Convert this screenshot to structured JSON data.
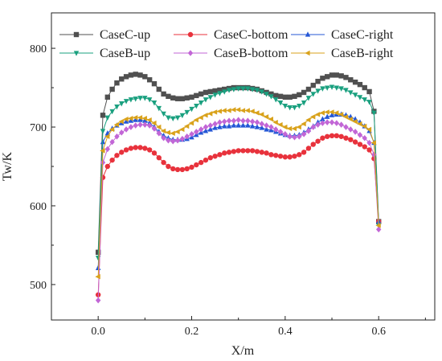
{
  "chart_data": {
    "type": "line",
    "xlabel": "X/m",
    "ylabel": "Tw/K",
    "xlim": [
      -0.1,
      0.72
    ],
    "ylim": [
      455,
      845
    ],
    "xticks": [
      0.0,
      0.2,
      0.4,
      0.6
    ],
    "xtick_labels": [
      "0.0",
      "0.2",
      "0.4",
      "0.6"
    ],
    "yticks": [
      500,
      600,
      700,
      800
    ],
    "ytick_labels": [
      "500",
      "600",
      "700",
      "800"
    ],
    "grid": false,
    "legend_placement": "top",
    "x": [
      0.0,
      0.01,
      0.02,
      0.03,
      0.04,
      0.05,
      0.06,
      0.07,
      0.08,
      0.09,
      0.1,
      0.11,
      0.12,
      0.13,
      0.14,
      0.15,
      0.16,
      0.17,
      0.18,
      0.19,
      0.2,
      0.21,
      0.22,
      0.23,
      0.24,
      0.25,
      0.26,
      0.27,
      0.28,
      0.29,
      0.3,
      0.31,
      0.32,
      0.33,
      0.34,
      0.35,
      0.36,
      0.37,
      0.38,
      0.39,
      0.4,
      0.41,
      0.42,
      0.43,
      0.44,
      0.45,
      0.46,
      0.47,
      0.48,
      0.49,
      0.5,
      0.51,
      0.52,
      0.53,
      0.54,
      0.55,
      0.56,
      0.57,
      0.58,
      0.59,
      0.6
    ],
    "series": [
      {
        "name": "CaseC-up",
        "color": "#505050",
        "marker": "square",
        "values": [
          541,
          715,
          738,
          748,
          756,
          761,
          764,
          766,
          767,
          766,
          764,
          760,
          755,
          748,
          742,
          739,
          737,
          736,
          736,
          737,
          738,
          740,
          742,
          744,
          745,
          746,
          747,
          748,
          749,
          750,
          750,
          750,
          750,
          749,
          748,
          746,
          744,
          742,
          740,
          739,
          738,
          738,
          739,
          741,
          744,
          748,
          753,
          758,
          762,
          764,
          766,
          766,
          765,
          763,
          760,
          757,
          754,
          750,
          745,
          720,
          580
        ]
      },
      {
        "name": "CaseC-bottom",
        "color": "#e8323c",
        "marker": "circle",
        "values": [
          487,
          636,
          650,
          658,
          664,
          668,
          671,
          673,
          674,
          674,
          673,
          671,
          667,
          661,
          655,
          650,
          647,
          646,
          646,
          647,
          649,
          652,
          655,
          658,
          661,
          663,
          665,
          667,
          668,
          669,
          670,
          670,
          670,
          670,
          669,
          668,
          667,
          665,
          664,
          663,
          662,
          662,
          663,
          665,
          668,
          673,
          678,
          682,
          686,
          688,
          689,
          689,
          688,
          686,
          684,
          681,
          678,
          675,
          671,
          660,
          580
        ]
      },
      {
        "name": "CaseC-right",
        "color": "#2457d6",
        "marker": "triangle-up",
        "values": [
          521,
          681,
          692,
          698,
          702,
          705,
          707,
          708,
          709,
          709,
          708,
          705,
          700,
          694,
          689,
          686,
          684,
          684,
          684,
          685,
          687,
          690,
          693,
          695,
          697,
          699,
          700,
          701,
          701,
          702,
          702,
          702,
          702,
          701,
          700,
          699,
          697,
          696,
          694,
          692,
          690,
          689,
          689,
          690,
          693,
          697,
          701,
          706,
          710,
          713,
          715,
          716,
          716,
          715,
          713,
          710,
          706,
          701,
          695,
          680,
          580
        ]
      },
      {
        "name": "CaseB-up",
        "color": "#1aa07f",
        "marker": "triangle-down",
        "values": [
          534,
          695,
          712,
          720,
          726,
          730,
          733,
          735,
          736,
          737,
          737,
          735,
          731,
          724,
          717,
          712,
          711,
          712,
          715,
          719,
          723,
          727,
          731,
          735,
          738,
          741,
          743,
          745,
          747,
          748,
          749,
          749,
          749,
          748,
          747,
          745,
          742,
          739,
          735,
          731,
          727,
          725,
          725,
          727,
          731,
          737,
          742,
          746,
          749,
          750,
          751,
          750,
          749,
          747,
          744,
          741,
          738,
          735,
          732,
          718,
          575
        ]
      },
      {
        "name": "CaseB-bottom",
        "color": "#c266d6",
        "marker": "diamond",
        "values": [
          480,
          655,
          672,
          681,
          688,
          693,
          697,
          700,
          702,
          703,
          703,
          702,
          698,
          692,
          686,
          683,
          682,
          683,
          685,
          688,
          691,
          694,
          697,
          700,
          702,
          704,
          706,
          707,
          708,
          708,
          709,
          708,
          708,
          707,
          706,
          704,
          702,
          700,
          697,
          694,
          691,
          688,
          687,
          688,
          691,
          695,
          700,
          703,
          705,
          706,
          706,
          705,
          703,
          700,
          697,
          694,
          690,
          686,
          680,
          665,
          570
        ]
      },
      {
        "name": "CaseB-right",
        "color": "#d9a21b",
        "marker": "triangle-left",
        "values": [
          510,
          670,
          688,
          697,
          703,
          707,
          710,
          711,
          712,
          712,
          711,
          709,
          705,
          700,
          695,
          693,
          692,
          694,
          697,
          701,
          705,
          709,
          712,
          715,
          717,
          719,
          720,
          721,
          721,
          722,
          722,
          721,
          721,
          720,
          718,
          716,
          713,
          710,
          706,
          703,
          700,
          698,
          698,
          700,
          704,
          709,
          713,
          716,
          718,
          719,
          719,
          718,
          716,
          713,
          710,
          707,
          704,
          701,
          697,
          680,
          575
        ]
      }
    ]
  }
}
